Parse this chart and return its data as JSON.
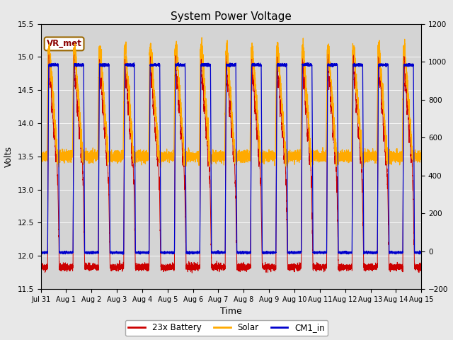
{
  "title": "System Power Voltage",
  "ylabel_left": "Volts",
  "xlabel": "Time",
  "ylim_left": [
    11.5,
    15.5
  ],
  "ylim_right": [
    -200,
    1200
  ],
  "x_tick_labels": [
    "Jul 31",
    "Aug 1",
    "Aug 2",
    "Aug 3",
    "Aug 4",
    "Aug 5",
    "Aug 6",
    "Aug 7",
    "Aug 8",
    "Aug 9",
    "Aug 10",
    "Aug 11",
    "Aug 12",
    "Aug 13",
    "Aug 14",
    "Aug 15"
  ],
  "yticks_left": [
    11.5,
    12.0,
    12.5,
    13.0,
    13.5,
    14.0,
    14.5,
    15.0,
    15.5
  ],
  "yticks_right": [
    -200,
    0,
    200,
    400,
    600,
    800,
    1000,
    1200
  ],
  "color_battery": "#cc0000",
  "color_solar": "#ffaa00",
  "color_cm1": "#0000cc",
  "background_color": "#d4d4d4",
  "fig_bg_color": "#e8e8e8",
  "label_battery": "23x Battery",
  "label_solar": "Solar",
  "label_cm1": "CM1_in",
  "annotation_text": "VR_met",
  "n_days": 15,
  "title_fontsize": 11,
  "axis_label_fontsize": 9,
  "tick_fontsize": 7.5
}
